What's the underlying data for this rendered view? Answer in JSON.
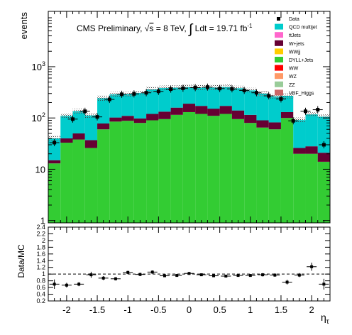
{
  "chart_data": [
    {
      "type": "bar",
      "stacked": true,
      "log_scale": true,
      "title": "CMS Preliminary, √s = 8 TeV, ∫ Ldt = 19.71 fb⁻¹",
      "title_parts": {
        "prefix": "CMS Preliminary, ",
        "sqrt": "√",
        "s": "s",
        "energy": " = 8 TeV, ",
        "integral": "∫",
        "lumi": " Ldt = 19.71 fb",
        "lumi_sup": "-1"
      },
      "ylabel": "events",
      "ylim": [
        0.9,
        12000
      ],
      "y_ticks": [
        {
          "value": 1,
          "base": "1",
          "exp": ""
        },
        {
          "value": 10,
          "base": "10",
          "exp": ""
        },
        {
          "value": 100,
          "base": "10",
          "exp": "2"
        },
        {
          "value": 1000,
          "base": "10",
          "exp": "3"
        }
      ],
      "x_edges": [
        -2.3,
        -2.1,
        -1.9,
        -1.7,
        -1.5,
        -1.3,
        -1.1,
        -0.9,
        -0.7,
        -0.5,
        -0.3,
        -0.1,
        0.1,
        0.3,
        0.5,
        0.7,
        0.9,
        1.1,
        1.3,
        1.5,
        1.7,
        1.9,
        2.1,
        2.3
      ],
      "series": [
        {
          "name": "DYLL+Jets",
          "color": "#33cc33",
          "values": [
            13,
            33,
            38,
            26,
            60,
            85,
            88,
            80,
            90,
            95,
            115,
            130,
            120,
            110,
            120,
            95,
            80,
            65,
            60,
            100,
            20,
            20,
            14,
            7
          ]
        },
        {
          "name": "W+jets",
          "color": "#660033",
          "values": [
            2,
            7,
            12,
            11,
            18,
            17,
            22,
            18,
            30,
            38,
            44,
            60,
            52,
            42,
            52,
            45,
            35,
            25,
            22,
            30,
            6,
            8,
            7,
            1
          ]
        },
        {
          "name": "QCD multijet",
          "color": "#00cccc",
          "values": [
            25,
            70,
            85,
            75,
            165,
            185,
            180,
            210,
            240,
            250,
            230,
            210,
            220,
            240,
            230,
            240,
            230,
            210,
            180,
            140,
            65,
            90,
            85,
            20
          ]
        }
      ],
      "legend": {
        "placement": "top-right",
        "entries": [
          {
            "label": "Data",
            "color": "#000000",
            "marker": true
          },
          {
            "label": "QCD multijet",
            "color": "#00cccc"
          },
          {
            "label": "ttJets",
            "color": "#ff66cc"
          },
          {
            "label": "W+jets",
            "color": "#660033"
          },
          {
            "label": "WWjj",
            "color": "#ffcc00"
          },
          {
            "label": "DYLL+Jets",
            "color": "#33cc33"
          },
          {
            "label": "WW",
            "color": "#ff0000"
          },
          {
            "label": "WZ",
            "color": "#ff9966"
          },
          {
            "label": "ZZ",
            "color": "#99cc99"
          },
          {
            "label": "VBF_Higgs",
            "color": "#cc6666"
          }
        ]
      },
      "data_points": {
        "name": "Data",
        "x": [
          -2.2,
          -1.9,
          -1.7,
          -1.5,
          -1.3,
          -1.1,
          -0.9,
          -0.7,
          -0.5,
          -0.3,
          -0.1,
          0.1,
          0.3,
          0.5,
          0.7,
          0.9,
          1.1,
          1.3,
          1.5,
          1.7,
          1.9,
          2.1,
          2.2
        ],
        "y": [
          33,
          95,
          135,
          105,
          230,
          290,
          295,
          310,
          330,
          365,
          380,
          390,
          400,
          375,
          370,
          345,
          310,
          270,
          235,
          88,
          135,
          145,
          30
        ]
      }
    },
    {
      "type": "scatter",
      "ylabel": "Data/MC",
      "xlabel": "η",
      "xlabel_sub": "τ",
      "xlim": [
        -2.3,
        2.3
      ],
      "ylim": [
        0.2,
        2.4
      ],
      "x_ticks": [
        "-2",
        "-1.5",
        "-1",
        "-0.5",
        "0",
        "0.5",
        "1",
        "1.5",
        "2"
      ],
      "x_tick_values": [
        -2,
        -1.5,
        -1,
        -0.5,
        0,
        0.5,
        1,
        1.5,
        2
      ],
      "y_ticks": [
        "0.2",
        "0.4",
        "0.6",
        "0.8",
        "1",
        "1.2",
        "1.4",
        "1.6",
        "1.8",
        "2",
        "2.2",
        "2.4"
      ],
      "y_tick_values": [
        0.2,
        0.4,
        0.6,
        0.8,
        1.0,
        1.2,
        1.4,
        1.6,
        1.8,
        2.0,
        2.2,
        2.4
      ],
      "reference_line": 1.0,
      "points": {
        "x": [
          -2.2,
          -2.0,
          -1.8,
          -1.6,
          -1.4,
          -1.2,
          -1.0,
          -0.8,
          -0.6,
          -0.4,
          -0.2,
          0.0,
          0.2,
          0.4,
          0.6,
          0.8,
          1.0,
          1.2,
          1.4,
          1.6,
          1.8,
          2.0,
          2.2
        ],
        "y": [
          0.7,
          0.67,
          0.7,
          0.98,
          0.88,
          0.86,
          1.05,
          0.99,
          1.06,
          0.95,
          0.96,
          1.02,
          0.98,
          0.95,
          0.94,
          0.96,
          0.96,
          0.98,
          0.97,
          0.76,
          0.97,
          1.22,
          0.7
        ],
        "err": [
          0.14,
          0.07,
          0.06,
          0.09,
          0.06,
          0.05,
          0.05,
          0.05,
          0.05,
          0.04,
          0.04,
          0.04,
          0.04,
          0.04,
          0.04,
          0.04,
          0.04,
          0.05,
          0.05,
          0.07,
          0.06,
          0.12,
          0.16
        ]
      }
    }
  ]
}
